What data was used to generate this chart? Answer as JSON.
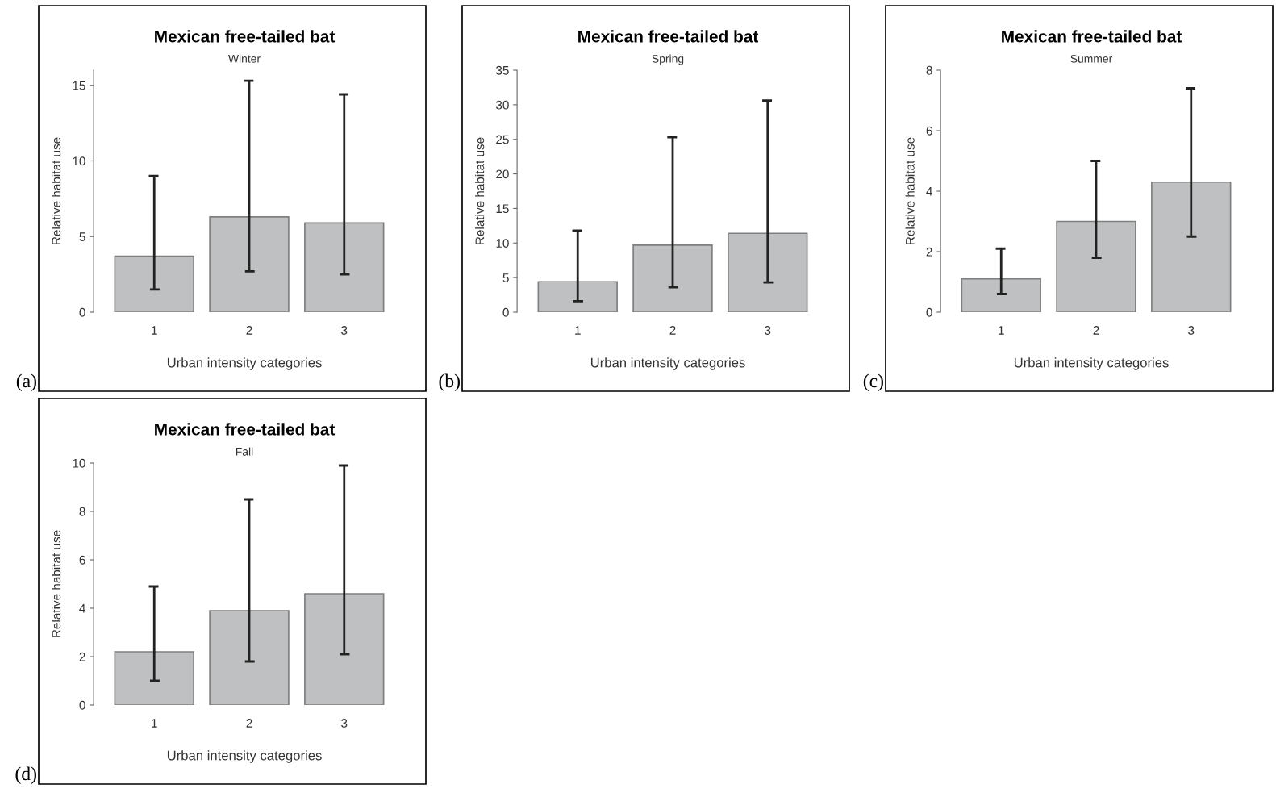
{
  "chart_data": [
    {
      "type": "bar",
      "title": "Mexican free-tailed bat",
      "subtitle": "Winter",
      "xlabel": "Urban intensity categories",
      "ylabel": "Relative habitat use",
      "categories": [
        "1",
        "2",
        "3"
      ],
      "values": [
        3.7,
        6.3,
        5.9
      ],
      "errors": [
        [
          1.5,
          9.0
        ],
        [
          2.7,
          15.3
        ],
        [
          2.5,
          14.4
        ]
      ],
      "color": "#bfc0c1",
      "ylim": [
        0,
        16
      ],
      "yticks": [
        0,
        5,
        10,
        15
      ],
      "annotations": [
        "(a)"
      ]
    },
    {
      "type": "bar",
      "title": "Mexican free-tailed bat",
      "subtitle": "Spring",
      "xlabel": "Urban intensity categories",
      "ylabel": "Relative habitat use",
      "categories": [
        "1",
        "2",
        "3"
      ],
      "values": [
        4.4,
        9.7,
        11.4
      ],
      "errors": [
        [
          1.6,
          11.8
        ],
        [
          3.6,
          25.3
        ],
        [
          4.3,
          30.6
        ]
      ],
      "color": "#bfc0c1",
      "ylim": [
        0,
        35
      ],
      "yticks": [
        0,
        5,
        10,
        15,
        20,
        25,
        30,
        35
      ],
      "annotations": [
        "(b)"
      ]
    },
    {
      "type": "bar",
      "title": "Mexican free-tailed bat",
      "subtitle": "Summer",
      "xlabel": "Urban intensity categories",
      "ylabel": "Relative habitat use",
      "categories": [
        "1",
        "2",
        "3"
      ],
      "values": [
        1.1,
        3.0,
        4.3
      ],
      "errors": [
        [
          0.6,
          2.1
        ],
        [
          1.8,
          5.0
        ],
        [
          2.5,
          7.4
        ]
      ],
      "color": "#bfc0c1",
      "ylim": [
        0,
        8
      ],
      "yticks": [
        0,
        2,
        4,
        6,
        8
      ],
      "annotations": [
        "(c)"
      ]
    },
    {
      "type": "bar",
      "title": "Mexican free-tailed bat",
      "subtitle": "Fall",
      "xlabel": "Urban intensity categories",
      "ylabel": "Relative habitat use",
      "categories": [
        "1",
        "2",
        "3"
      ],
      "values": [
        2.2,
        3.9,
        4.6
      ],
      "errors": [
        [
          1.0,
          4.9
        ],
        [
          1.8,
          8.5
        ],
        [
          2.1,
          9.9
        ]
      ],
      "color": "#bfc0c1",
      "ylim": [
        0,
        10
      ],
      "yticks": [
        0,
        2,
        4,
        6,
        8,
        10
      ],
      "annotations": [
        "(d)"
      ]
    }
  ]
}
